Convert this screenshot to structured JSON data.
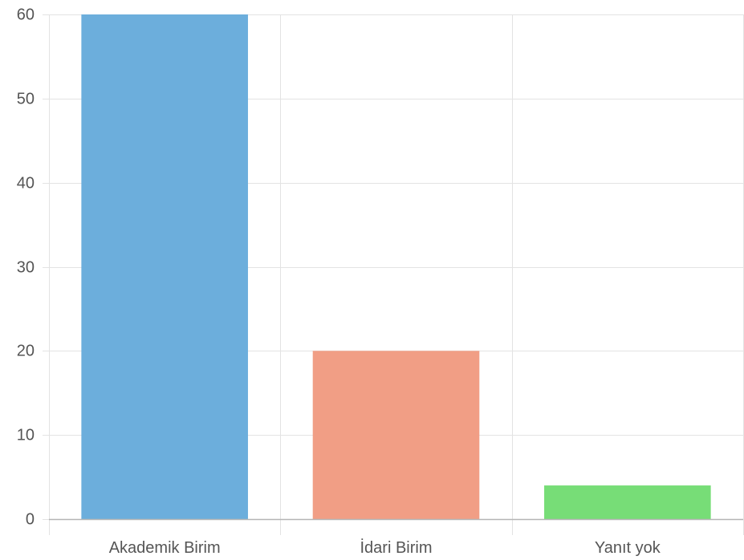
{
  "chart_data": {
    "type": "bar",
    "categories": [
      "Akademik Birim",
      "İdari Birim",
      "Yanıt yok"
    ],
    "values": [
      60,
      20,
      4
    ],
    "colors": [
      "#6caedc",
      "#f19e85",
      "#77dd77"
    ],
    "ylim": [
      0,
      60
    ],
    "yticks": [
      0,
      10,
      20,
      30,
      40,
      50,
      60
    ],
    "title": "",
    "xlabel": "",
    "ylabel": "",
    "grid": true,
    "legend": "none"
  }
}
